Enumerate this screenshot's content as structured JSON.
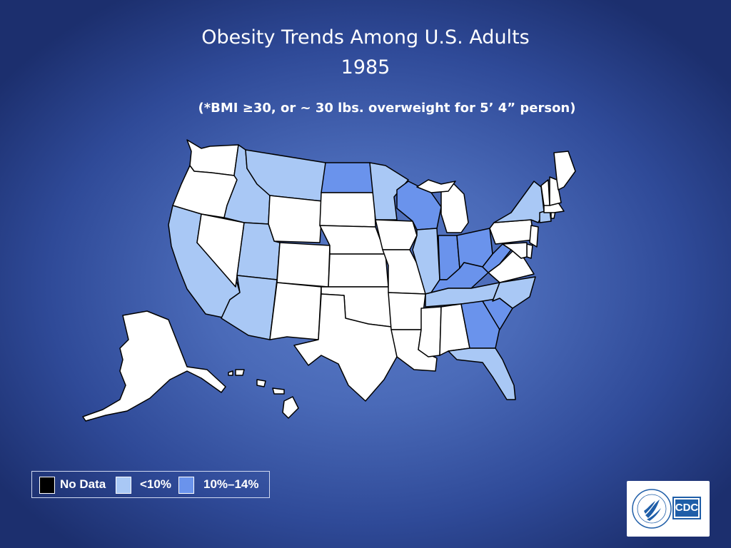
{
  "title": {
    "line1": "Obesity Trends Among U.S. Adults",
    "line2": "1985",
    "subtitle": "(*BMI ≥30, or ~ 30 lbs. overweight for 5’ 4” person)"
  },
  "legend": [
    {
      "key": "nodata",
      "label": "No Data",
      "color": "#000000"
    },
    {
      "key": "lt10",
      "label": "<10%",
      "color": "#a9c8f5"
    },
    {
      "key": "10to14",
      "label": "10%–14%",
      "color": "#6a93ec"
    }
  ],
  "colors": {
    "no_survey": "#ffffff",
    "lt10": "#a9c8f5",
    "10to14": "#6a93ec",
    "border": "#000000"
  },
  "states": {
    "WA": "none",
    "OR": "none",
    "CA": "lt10",
    "NV": "none",
    "ID": "lt10",
    "MT": "lt10",
    "WY": "none",
    "UT": "lt10",
    "AZ": "lt10",
    "CO": "none",
    "NM": "none",
    "ND": "10to14",
    "SD": "none",
    "NE": "none",
    "KS": "none",
    "OK": "none",
    "TX": "none",
    "MN": "lt10",
    "IA": "none",
    "MO": "none",
    "AR": "none",
    "LA": "none",
    "WI": "10to14",
    "IL": "lt10",
    "MI": "none",
    "IN": "10to14",
    "OH": "10to14",
    "KY": "10to14",
    "TN": "lt10",
    "MS": "none",
    "AL": "none",
    "GA": "10to14",
    "FL": "lt10",
    "SC": "10to14",
    "NC": "lt10",
    "VA": "none",
    "WV": "10to14",
    "PA": "none",
    "NY": "lt10",
    "VT": "none",
    "NH": "none",
    "ME": "none",
    "MA": "none",
    "RI": "none",
    "CT": "lt10",
    "NJ": "none",
    "DE": "none",
    "MD": "none",
    "AK": "none",
    "HI": "none"
  },
  "logo": {
    "text": "CDC"
  }
}
